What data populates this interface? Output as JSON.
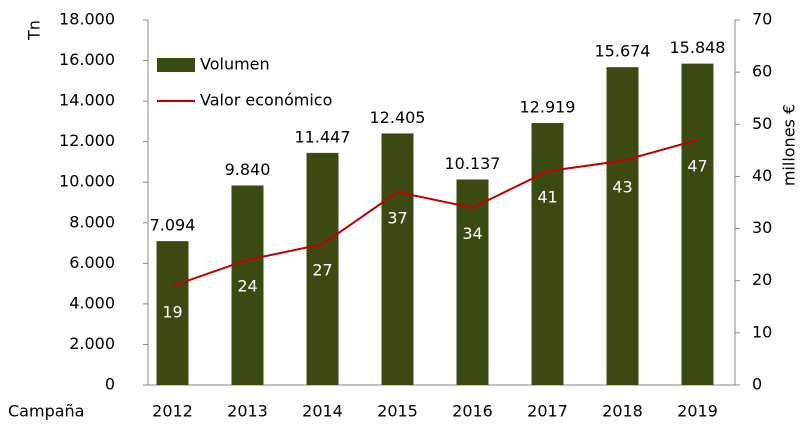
{
  "chart_data": {
    "type": "bar",
    "y_label": "Tn",
    "y2_label": "millones €",
    "x_label": "Campaña",
    "categories": [
      "2012",
      "2013",
      "2014",
      "2015",
      "2016",
      "2017",
      "2018",
      "2019"
    ],
    "series": [
      {
        "name": "Volumen",
        "color": "#3b4a10",
        "values": [
          7094,
          9840,
          11447,
          12405,
          10137,
          12919,
          15674,
          15848
        ],
        "value_labels": [
          "7.094",
          "9.840",
          "11.447",
          "12.405",
          "10.137",
          "12.919",
          "15.674",
          "15.848"
        ]
      },
      {
        "name": "Valor económico",
        "type": "line",
        "axis": "y2",
        "color": "#c00000",
        "values": [
          19,
          24,
          27,
          37,
          34,
          41,
          43,
          47
        ]
      }
    ],
    "ylim": [
      0,
      18000
    ],
    "yticks": [
      0,
      {
        "value": 2000,
        "label": "2.000"
      },
      {
        "value": 4000,
        "label": "4.000"
      },
      {
        "value": 6000,
        "label": "6.000"
      },
      {
        "value": 8000,
        "label": "8.000"
      },
      {
        "value": 10000,
        "label": "10.000"
      },
      {
        "value": 12000,
        "label": "12.000"
      },
      {
        "value": 14000,
        "label": "14.000"
      },
      {
        "value": 16000,
        "label": "16.000"
      },
      {
        "value": 18000,
        "label": "18.000"
      }
    ],
    "y2lim": [
      0,
      70
    ],
    "y2ticks": [
      0,
      10,
      20,
      30,
      40,
      50,
      60,
      70
    ],
    "legend": "top-left"
  }
}
